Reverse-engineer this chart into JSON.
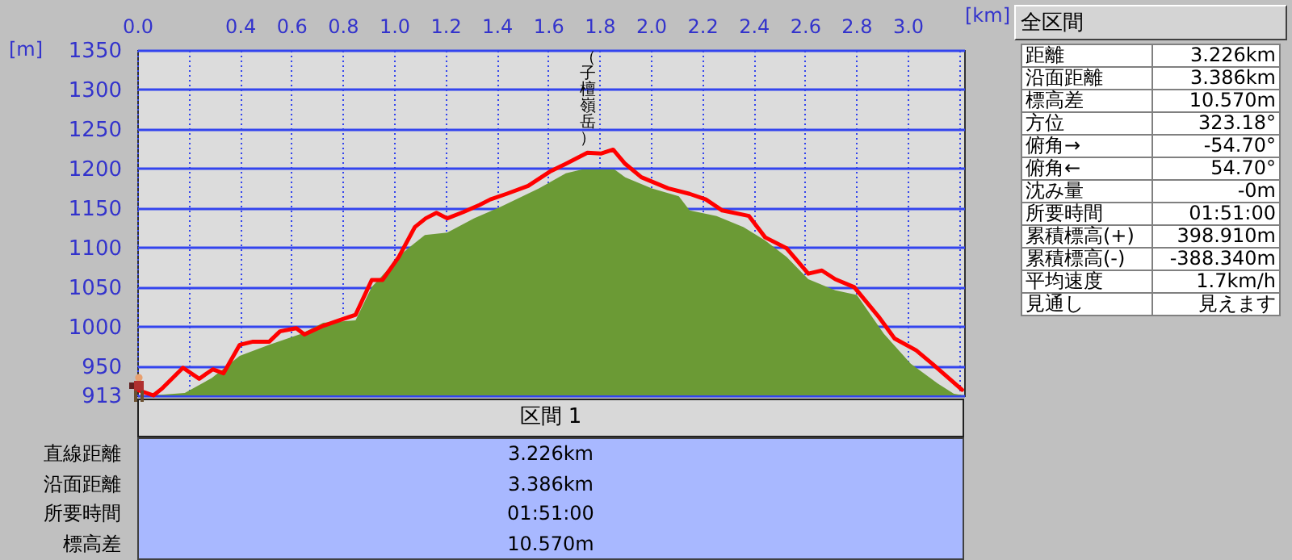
{
  "chart_data": [
    {
      "type": "line",
      "xlabel": "[km]",
      "ylabel": "[m]",
      "xlim": [
        0,
        3.22
      ],
      "ylim": [
        913,
        1350
      ],
      "xticks": [
        {
          "value": 0,
          "label": "0.0"
        },
        {
          "value": 0.2,
          "label": null
        },
        0.4,
        0.6,
        0.8,
        {
          "value": 1,
          "label": "1.0"
        },
        1.2,
        1.4,
        1.6,
        1.8,
        {
          "value": 2,
          "label": "2.0"
        },
        2.2,
        2.4,
        2.6,
        2.8,
        {
          "value": 3,
          "label": "3.0"
        },
        {
          "value": 3.2,
          "label": null
        }
      ],
      "yticks": [
        913,
        950,
        1000,
        1050,
        1100,
        1150,
        1200,
        1250,
        1300,
        1350
      ],
      "grid": true,
      "annotations": [
        {
          "text": "（子檀嶺岳）",
          "x": 1.8,
          "y": 1224
        }
      ],
      "series": [
        {
          "type": "area",
          "color": "#6b9a35",
          "x": [
            0,
            0.06,
            0.185,
            0.29,
            0.399,
            0.514,
            0.64,
            0.724,
            0.85,
            0.913,
            1.04,
            1.12,
            1.207,
            1.312,
            1.417,
            1.564,
            1.669,
            1.732,
            1.858,
            1.9,
            2.004,
            2.109,
            2.151,
            2.256,
            2.361,
            2.445,
            2.529,
            2.613,
            2.718,
            2.802,
            2.907,
            3.012,
            3.117,
            3.18,
            3.22
          ],
          "values": [
            913,
            913,
            916,
            935,
            963,
            977,
            991,
            1005,
            1008,
            1050,
            1095,
            1116,
            1119,
            1137,
            1152,
            1175,
            1194,
            1199,
            1199,
            1189,
            1175,
            1165,
            1147,
            1140,
            1126,
            1109,
            1088,
            1060,
            1046,
            1040,
            991,
            953,
            928,
            915,
            913
          ]
        },
        {
          "type": "line",
          "color": "#ff0000",
          "x": [
            0,
            0.063,
            0.094,
            0.178,
            0.241,
            0.294,
            0.336,
            0.399,
            0.451,
            0.514,
            0.556,
            0.619,
            0.651,
            0.724,
            0.787,
            0.85,
            0.913,
            0.955,
            1.018,
            1.081,
            1.123,
            1.165,
            1.207,
            1.27,
            1.333,
            1.375,
            1.438,
            1.522,
            1.606,
            1.669,
            1.753,
            1.805,
            1.853,
            1.9,
            1.963,
            2.067,
            2.151,
            2.214,
            2.278,
            2.382,
            2.445,
            2.529,
            2.613,
            2.666,
            2.718,
            2.792,
            2.886,
            2.949,
            3.033,
            3.096,
            3.159,
            3.212
          ],
          "values": [
            920,
            913,
            921,
            948,
            934,
            946,
            941,
            977,
            981,
            981,
            994,
            998,
            990,
            1001,
            1008,
            1015,
            1059,
            1059,
            1088,
            1126,
            1137,
            1144,
            1137,
            1145,
            1154,
            1161,
            1168,
            1178,
            1196,
            1206,
            1220,
            1219,
            1224,
            1206,
            1189,
            1175,
            1168,
            1161,
            1147,
            1140,
            1113,
            1099,
            1067,
            1071,
            1060,
            1050,
            1013,
            985,
            970,
            953,
            935,
            920
          ]
        }
      ]
    },
    {
      "type": "other",
      "title": "全区間",
      "annotations": [
        "距離",
        "3.226km",
        "沿面距離",
        "3.386km",
        "標高差",
        "10.570m",
        "方位",
        "323.18°",
        "俯角→",
        "-54.70°",
        "俯角←",
        "54.70°",
        "沈み量",
        "-0m",
        "所要時間",
        "01:51:00",
        "累積標高(+)",
        "398.910m",
        "累積標高(-)",
        "-388.340m",
        "平均速度",
        "1.7km/h",
        "見通し",
        "見えます"
      ]
    },
    {
      "type": "other",
      "title": "区間 1",
      "annotations": [
        "直線距離",
        "3.226km",
        "沿面距離",
        "3.386km",
        "所要時間",
        "01:51:00",
        "標高差",
        "10.570m"
      ]
    }
  ]
}
